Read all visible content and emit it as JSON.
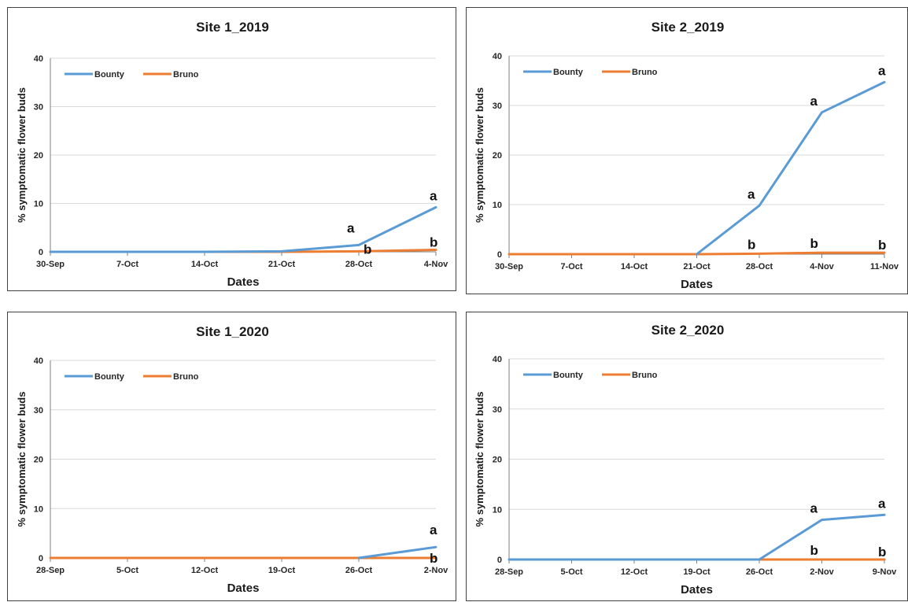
{
  "chart_data": [
    {
      "type": "line",
      "title": "Site 1_2019",
      "xlabel": "Dates",
      "ylabel": "% symptomatic flower buds",
      "ylim": [
        0,
        40
      ],
      "yticks": [
        0,
        10,
        20,
        30,
        40
      ],
      "x": [
        "30-Sep",
        "7-Oct",
        "14-Oct",
        "21-Oct",
        "28-Oct",
        "4-Nov"
      ],
      "series": [
        {
          "name": "Bounty",
          "color": "#5b9bd5",
          "values": [
            0,
            0,
            0,
            0.1,
            1.4,
            9.2
          ]
        },
        {
          "name": "Bruno",
          "color": "#ed7d31",
          "values": [
            0,
            0,
            0,
            0,
            0.1,
            0.4
          ]
        }
      ],
      "legend_position": "top-left",
      "grid": "horizontal",
      "annotations": [
        {
          "text": "a",
          "x": "28-Oct",
          "series": "Bounty"
        },
        {
          "text": "b",
          "x": "28-Oct",
          "series": "Bruno"
        },
        {
          "text": "a",
          "x": "4-Nov",
          "series": "Bounty"
        },
        {
          "text": "b",
          "x": "4-Nov",
          "series": "Bruno"
        }
      ]
    },
    {
      "type": "line",
      "title": "Site 2_2019",
      "xlabel": "Dates",
      "ylabel": "% symptomatic flower buds",
      "ylim": [
        0,
        40
      ],
      "yticks": [
        0,
        10,
        20,
        30,
        40
      ],
      "x": [
        "30-Sep",
        "7-Oct",
        "14-Oct",
        "21-Oct",
        "28-Oct",
        "4-Nov",
        "11-Nov"
      ],
      "series": [
        {
          "name": "Bounty",
          "color": "#5b9bd5",
          "values": [
            null,
            null,
            null,
            0,
            9.8,
            28.6,
            34.7
          ]
        },
        {
          "name": "Bruno",
          "color": "#ed7d31",
          "values": [
            0,
            0,
            0,
            0,
            0.1,
            0.3,
            0.3
          ]
        }
      ],
      "legend_position": "top-left",
      "grid": "horizontal",
      "annotations": [
        {
          "text": "a",
          "x": "28-Oct",
          "series": "Bounty"
        },
        {
          "text": "b",
          "x": "28-Oct",
          "series": "Bruno"
        },
        {
          "text": "a",
          "x": "4-Nov",
          "series": "Bounty"
        },
        {
          "text": "b",
          "x": "4-Nov",
          "series": "Bruno"
        },
        {
          "text": "a",
          "x": "11-Nov",
          "series": "Bounty"
        },
        {
          "text": "b",
          "x": "11-Nov",
          "series": "Bruno"
        }
      ]
    },
    {
      "type": "line",
      "title": "Site 1_2020",
      "xlabel": "Dates",
      "ylabel": "% symptomatic flower buds",
      "ylim": [
        0,
        40
      ],
      "yticks": [
        0,
        10,
        20,
        30,
        40
      ],
      "x": [
        "28-Sep",
        "5-Oct",
        "12-Oct",
        "19-Oct",
        "26-Oct",
        "2-Nov"
      ],
      "series": [
        {
          "name": "Bounty",
          "color": "#5b9bd5",
          "values": [
            null,
            null,
            null,
            null,
            0,
            2.2
          ]
        },
        {
          "name": "Bruno",
          "color": "#ed7d31",
          "values": [
            0,
            0,
            0,
            0,
            0,
            0
          ]
        }
      ],
      "legend_position": "top-left",
      "grid": "horizontal",
      "annotations": [
        {
          "text": "a",
          "x": "2-Nov",
          "series": "Bounty"
        },
        {
          "text": "b",
          "x": "2-Nov",
          "series": "Bruno"
        }
      ]
    },
    {
      "type": "line",
      "title": "Site 2_2020",
      "xlabel": "Dates",
      "ylabel": "% symptomatic flower buds",
      "ylim": [
        0,
        40
      ],
      "yticks": [
        0,
        10,
        20,
        30,
        40
      ],
      "x": [
        "28-Sep",
        "5-Oct",
        "12-Oct",
        "19-Oct",
        "26-Oct",
        "2-Nov",
        "9-Nov"
      ],
      "series": [
        {
          "name": "Bounty",
          "color": "#5b9bd5",
          "values": [
            0,
            0,
            0,
            0,
            0,
            7.9,
            8.9
          ]
        },
        {
          "name": "Bruno",
          "color": "#ed7d31",
          "values": [
            null,
            null,
            0,
            0,
            0,
            0,
            0
          ]
        }
      ],
      "legend_position": "top-left",
      "grid": "horizontal",
      "annotations": [
        {
          "text": "a",
          "x": "2-Nov",
          "series": "Bounty"
        },
        {
          "text": "b",
          "x": "2-Nov",
          "series": "Bruno"
        },
        {
          "text": "a",
          "x": "9-Nov",
          "series": "Bounty"
        },
        {
          "text": "b",
          "x": "9-Nov",
          "series": "Bruno"
        }
      ]
    }
  ]
}
